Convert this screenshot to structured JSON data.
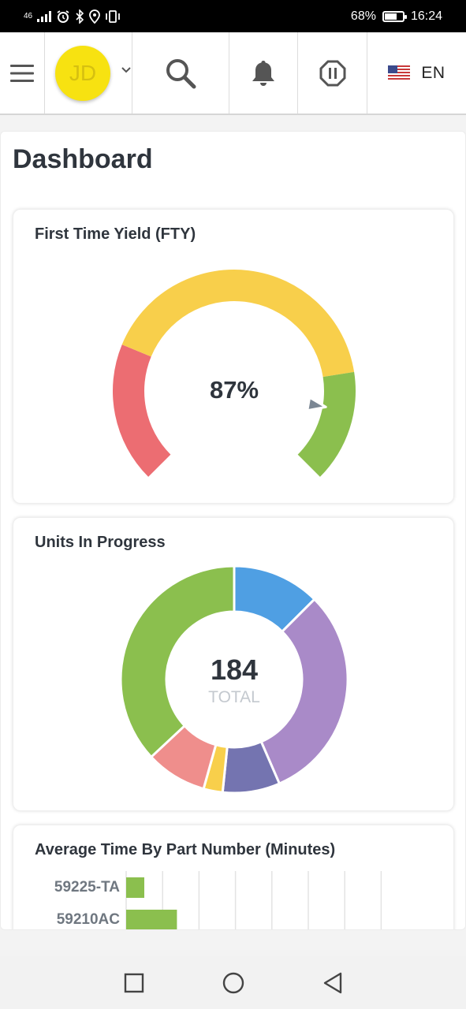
{
  "status_bar": {
    "network": "46",
    "battery_percent": "68%",
    "battery_level": 0.68,
    "time": "16:24"
  },
  "appbar": {
    "avatar_initials": "JD",
    "language": "EN",
    "icons": [
      "menu-icon",
      "chevron-down-icon",
      "search-icon",
      "bell-icon",
      "stop-octagon-icon",
      "us-flag-icon"
    ]
  },
  "page": {
    "title": "Dashboard"
  },
  "fty": {
    "title": "First Time Yield (FTY)",
    "value_label": "87%",
    "value": 87,
    "colors": {
      "low": "#ec6d72",
      "mid": "#f8cf4b",
      "high": "#8bbf4e",
      "needle": "#7b8794"
    }
  },
  "units": {
    "title": "Units In Progress",
    "total": "184",
    "total_label": "TOTAL"
  },
  "avg": {
    "title": "Average Time By Part Number (Minutes)"
  },
  "chart_data": [
    {
      "type": "gauge",
      "title": "First Time Yield (FTY)",
      "value": 87,
      "unit": "%",
      "bands": [
        {
          "color": "#ec6d72",
          "from": 0,
          "to": 25
        },
        {
          "color": "#f8cf4b",
          "from": 25,
          "to": 80
        },
        {
          "color": "#8bbf4e",
          "from": 80,
          "to": 100
        }
      ]
    },
    {
      "type": "pie",
      "title": "Units In Progress",
      "total": 184,
      "series": [
        {
          "color": "#4f9fe3",
          "value": 23
        },
        {
          "color": "#a98ac8",
          "value": 57
        },
        {
          "color": "#7474b0",
          "value": 15
        },
        {
          "color": "#f8cf4b",
          "value": 5
        },
        {
          "color": "#ef8e8c",
          "value": 16
        },
        {
          "color": "#8bbf4e",
          "value": 68
        }
      ]
    },
    {
      "type": "bar",
      "orientation": "horizontal",
      "title": "Average Time By Part Number (Minutes)",
      "categories": [
        "59225-TA",
        "59210AC"
      ],
      "values": [
        5,
        14
      ],
      "color": "#8bbf4e"
    }
  ]
}
